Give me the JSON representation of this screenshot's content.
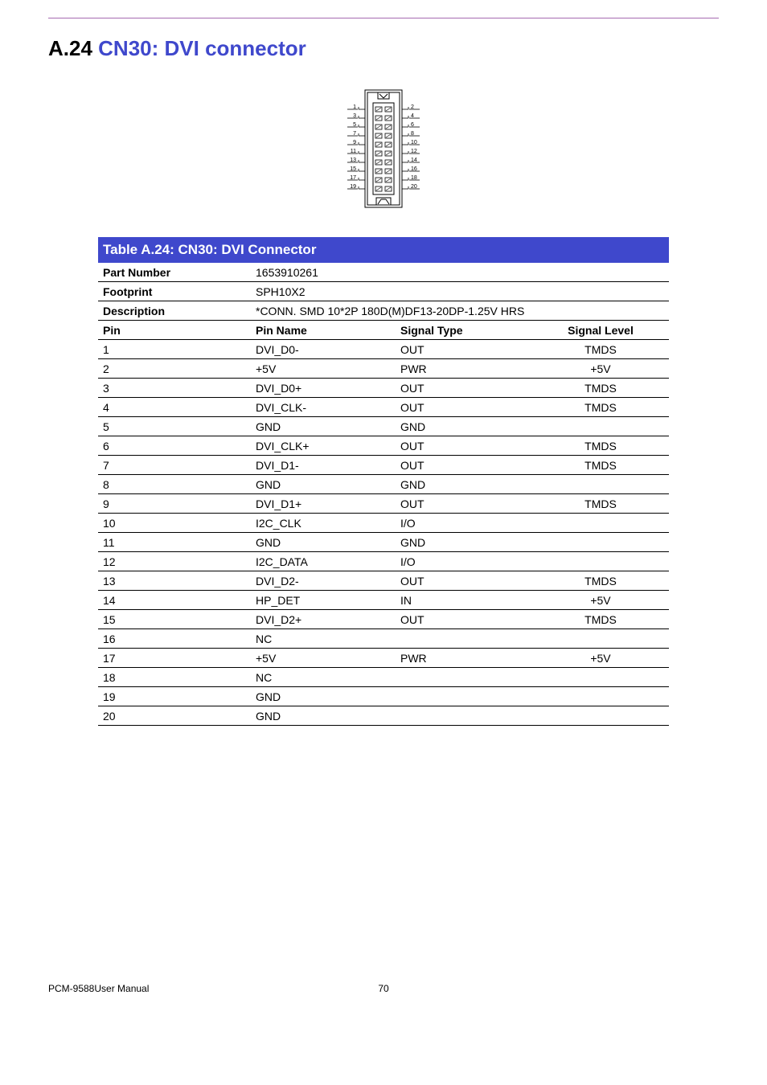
{
  "page": {
    "section_prefix": "A.24",
    "section_title": "CN30: DVI connector",
    "table_title": "Table A.24: CN30: DVI Connector",
    "footer_left": "PCM-9588User Manual",
    "footer_page": "70"
  },
  "colors": {
    "accent_purple": "#a56ab0",
    "heading_blue": "#3f48cc",
    "table_header_bg": "#3f48cc",
    "table_header_fg": "#ffffff",
    "rule": "#000000",
    "text": "#000000",
    "bg": "#ffffff"
  },
  "meta": {
    "part_number_k": "Part Number",
    "part_number_v": "1653910261",
    "footprint_k": "Footprint",
    "footprint_v": "SPH10X2",
    "description_k": "Description",
    "description_v": "*CONN. SMD 10*2P 180D(M)DF13-20DP-1.25V HRS"
  },
  "columns": {
    "pin": "Pin",
    "name": "Pin Name",
    "sigtype": "Signal Type",
    "siglevel": "Signal Level"
  },
  "connector": {
    "left_labels": [
      "1",
      "3",
      "5",
      "7",
      "9",
      "11",
      "13",
      "15",
      "17",
      "19"
    ],
    "right_labels": [
      "2",
      "4",
      "6",
      "8",
      "10",
      "12",
      "14",
      "16",
      "18",
      "20"
    ]
  },
  "rows": [
    {
      "pin": "1",
      "name": "DVI_D0-",
      "sigtype": "OUT",
      "siglevel": "TMDS"
    },
    {
      "pin": "2",
      "name": "+5V",
      "sigtype": "PWR",
      "siglevel": "+5V"
    },
    {
      "pin": "3",
      "name": "DVI_D0+",
      "sigtype": "OUT",
      "siglevel": "TMDS"
    },
    {
      "pin": "4",
      "name": "DVI_CLK-",
      "sigtype": "OUT",
      "siglevel": "TMDS"
    },
    {
      "pin": "5",
      "name": "GND",
      "sigtype": "GND",
      "siglevel": ""
    },
    {
      "pin": "6",
      "name": "DVI_CLK+",
      "sigtype": "OUT",
      "siglevel": "TMDS"
    },
    {
      "pin": "7",
      "name": "DVI_D1-",
      "sigtype": "OUT",
      "siglevel": "TMDS"
    },
    {
      "pin": "8",
      "name": "GND",
      "sigtype": "GND",
      "siglevel": ""
    },
    {
      "pin": "9",
      "name": "DVI_D1+",
      "sigtype": "OUT",
      "siglevel": "TMDS"
    },
    {
      "pin": "10",
      "name": "I2C_CLK",
      "sigtype": "I/O",
      "siglevel": ""
    },
    {
      "pin": "11",
      "name": "GND",
      "sigtype": "GND",
      "siglevel": ""
    },
    {
      "pin": "12",
      "name": "I2C_DATA",
      "sigtype": "I/O",
      "siglevel": ""
    },
    {
      "pin": "13",
      "name": "DVI_D2-",
      "sigtype": "OUT",
      "siglevel": "TMDS"
    },
    {
      "pin": "14",
      "name": "HP_DET",
      "sigtype": "IN",
      "siglevel": "+5V"
    },
    {
      "pin": "15",
      "name": "DVI_D2+",
      "sigtype": "OUT",
      "siglevel": "TMDS"
    },
    {
      "pin": "16",
      "name": "NC",
      "sigtype": "",
      "siglevel": ""
    },
    {
      "pin": "17",
      "name": "+5V",
      "sigtype": "PWR",
      "siglevel": "+5V"
    },
    {
      "pin": "18",
      "name": "NC",
      "sigtype": "",
      "siglevel": ""
    },
    {
      "pin": "19",
      "name": "GND",
      "sigtype": "",
      "siglevel": ""
    },
    {
      "pin": "20",
      "name": "GND",
      "sigtype": "",
      "siglevel": ""
    }
  ]
}
